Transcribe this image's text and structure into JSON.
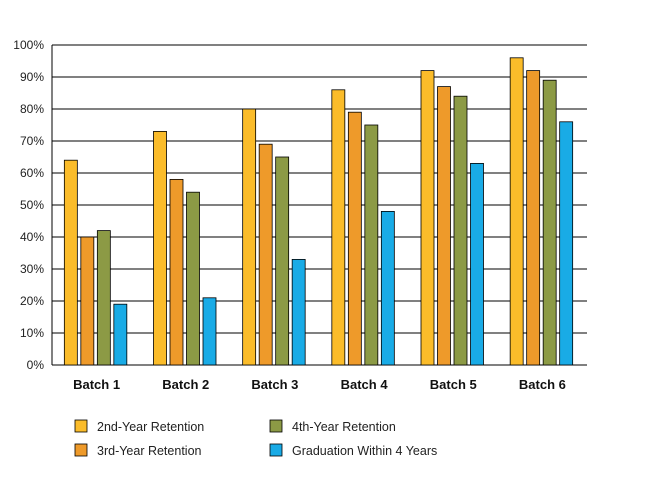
{
  "chart_data": {
    "type": "bar",
    "categories": [
      "Batch 1",
      "Batch 2",
      "Batch 3",
      "Batch 4",
      "Batch 5",
      "Batch 6"
    ],
    "series": [
      {
        "name": "2nd-Year Retention",
        "color": "#FBBC2A",
        "values": [
          64,
          73,
          80,
          86,
          92,
          96
        ]
      },
      {
        "name": "3rd-Year Retention",
        "color": "#EE9A2A",
        "values": [
          40,
          58,
          69,
          79,
          87,
          92
        ]
      },
      {
        "name": "4th-Year Retention",
        "color": "#8C9A45",
        "values": [
          42,
          54,
          65,
          75,
          84,
          89
        ]
      },
      {
        "name": "Graduation Within 4 Years",
        "color": "#19ABE6",
        "values": [
          19,
          21,
          33,
          48,
          63,
          76
        ]
      }
    ],
    "ylim": [
      0,
      100
    ],
    "yticks": [
      "0%",
      "10%",
      "20%",
      "30%",
      "40%",
      "50%",
      "60%",
      "70%",
      "80%",
      "90%",
      "100%"
    ],
    "title": "",
    "xlabel": "",
    "ylabel": "",
    "grid": true,
    "legend_position": "bottom"
  }
}
